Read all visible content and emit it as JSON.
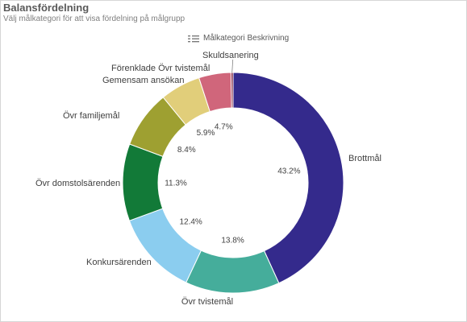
{
  "header": {
    "title": "Balansfördelning",
    "subtitle": "Välj målkategori för att visa fördelning på målgrupp"
  },
  "legend": {
    "icon": "legend-collapse-icon",
    "label": "Målkategori Beskrivning"
  },
  "colors": {
    "Brottmål": "#342a8c",
    "Övr tvistemål": "#45ad9b",
    "Konkursärenden": "#8bcdef",
    "Övr domstolsärenden": "#127a38",
    "Övr familjemål": "#9ea031",
    "Gemensam ansökan": "#e1ce7a",
    "Förenklade Övr tvistemål": "#d0667b",
    "Skuldsanering": "#7c1f3c"
  },
  "chart_data": {
    "type": "pie",
    "donut": true,
    "title": "Balansfördelning",
    "subtitle": "Välj målkategori för att visa fördelning på målgrupp",
    "legend_title": "Målkategori Beskrivning",
    "legend_placement": "top",
    "slices": [
      {
        "label": "Brottmål",
        "value": 43.2,
        "value_label": "43.2%"
      },
      {
        "label": "Övr tvistemål",
        "value": 13.8,
        "value_label": "13.8%"
      },
      {
        "label": "Konkursärenden",
        "value": 12.4,
        "value_label": "12.4%"
      },
      {
        "label": "Övr domstolsärenden",
        "value": 11.3,
        "value_label": "11.3%"
      },
      {
        "label": "Övr familjemål",
        "value": 8.4,
        "value_label": "8.4%"
      },
      {
        "label": "Gemensam ansökan",
        "value": 5.9,
        "value_label": "5.9%"
      },
      {
        "label": "Förenklade Övr tvistemål",
        "value": 4.7,
        "value_label": "4.7%"
      },
      {
        "label": "Skuldsanering",
        "value": 0.3,
        "value_label": ""
      }
    ]
  }
}
